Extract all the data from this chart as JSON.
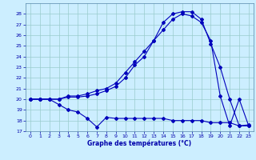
{
  "xlabel": "Graphe des températures (°C)",
  "background_color": "#cceeff",
  "grid_color": "#99cccc",
  "line_color": "#0000bb",
  "xlim": [
    -0.5,
    23.5
  ],
  "ylim": [
    17,
    29
  ],
  "yticks": [
    17,
    18,
    19,
    20,
    21,
    22,
    23,
    24,
    25,
    26,
    27,
    28
  ],
  "xticks": [
    0,
    1,
    2,
    3,
    4,
    5,
    6,
    7,
    8,
    9,
    10,
    11,
    12,
    13,
    14,
    15,
    16,
    17,
    18,
    19,
    20,
    21,
    22,
    23
  ],
  "line1_x": [
    0,
    1,
    2,
    3,
    4,
    5,
    6,
    7,
    8,
    9,
    10,
    11,
    12,
    13,
    14,
    15,
    16,
    17,
    18,
    19,
    20,
    21,
    22,
    23
  ],
  "line1_y": [
    20.0,
    20.0,
    20.0,
    19.5,
    19.0,
    18.8,
    18.2,
    17.4,
    18.3,
    18.2,
    18.2,
    18.2,
    18.2,
    18.2,
    18.2,
    18.0,
    18.0,
    18.0,
    18.0,
    17.8,
    17.8,
    17.8,
    17.5,
    17.6
  ],
  "line2_x": [
    0,
    1,
    2,
    3,
    4,
    5,
    6,
    7,
    8,
    9,
    10,
    11,
    12,
    13,
    14,
    15,
    16,
    17,
    18,
    19,
    20,
    21,
    22,
    23
  ],
  "line2_y": [
    20.0,
    20.0,
    20.0,
    20.0,
    20.3,
    20.3,
    20.5,
    20.8,
    21.0,
    21.5,
    22.5,
    23.5,
    24.5,
    25.5,
    27.2,
    28.0,
    28.2,
    28.2,
    27.5,
    25.2,
    23.0,
    20.0,
    17.5,
    17.5
  ],
  "line3_x": [
    0,
    1,
    2,
    3,
    4,
    5,
    6,
    7,
    8,
    9,
    10,
    11,
    12,
    13,
    14,
    15,
    16,
    17,
    18,
    19,
    20,
    21,
    22,
    23
  ],
  "line3_y": [
    20.0,
    20.0,
    20.0,
    20.0,
    20.2,
    20.2,
    20.3,
    20.5,
    20.8,
    21.2,
    22.0,
    23.2,
    24.0,
    25.5,
    26.5,
    27.5,
    28.0,
    27.8,
    27.2,
    25.5,
    20.3,
    17.5,
    20.0,
    17.5
  ]
}
